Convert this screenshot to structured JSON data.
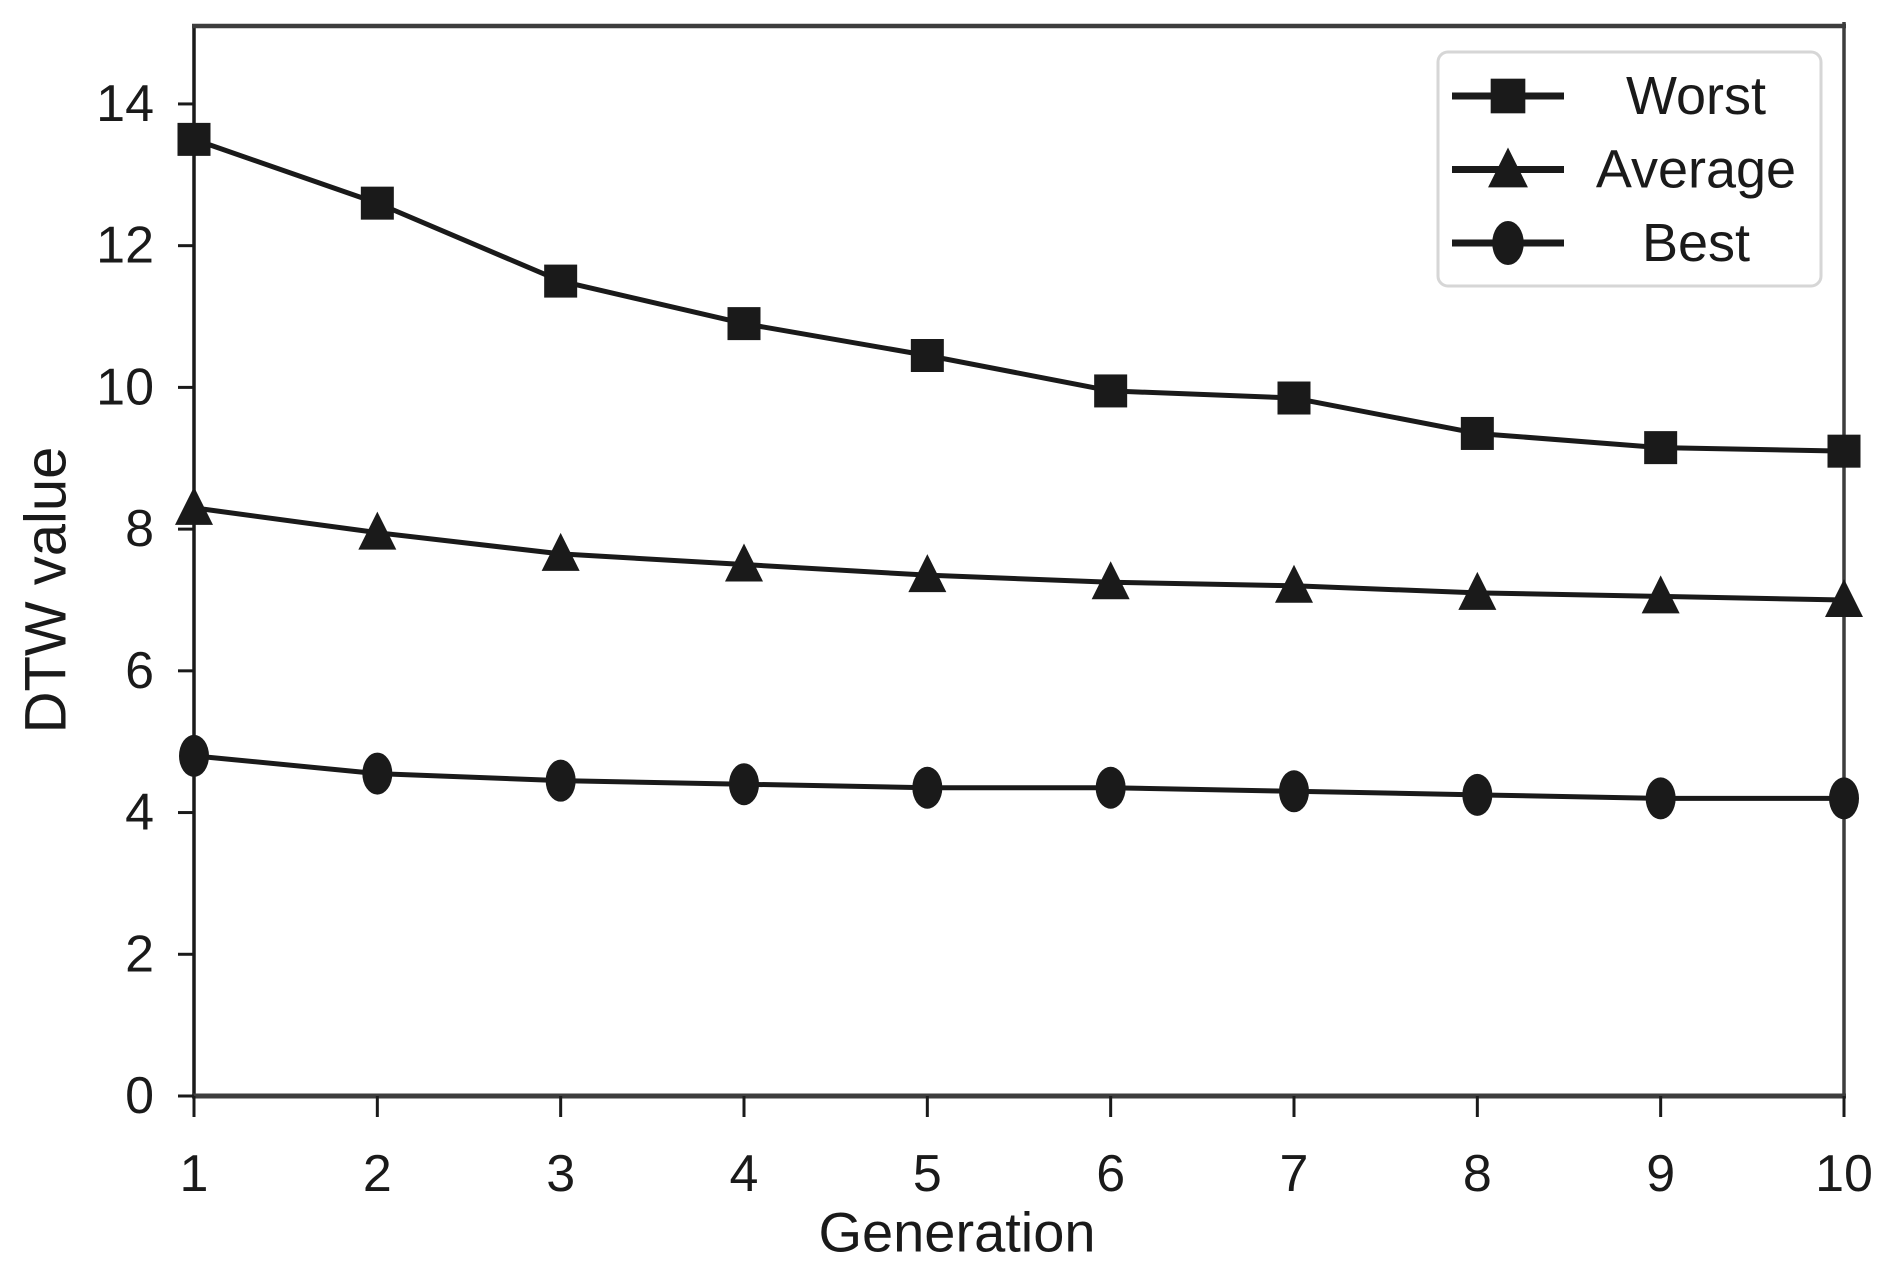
{
  "figure": {
    "background": "#ffffff",
    "axis_color": "#1a1a1a",
    "spine_color": "#3d3d3d",
    "legend_border_color": "#d6d6d6"
  },
  "chart_data": {
    "type": "line",
    "title": "",
    "xlabel": "Generation",
    "ylabel": "DTW value",
    "x": [
      1,
      2,
      3,
      4,
      5,
      6,
      7,
      8,
      9,
      10
    ],
    "xlim": [
      1,
      10
    ],
    "ylim": [
      0,
      15.1
    ],
    "yticks": [
      0,
      2,
      4,
      6,
      8,
      10,
      12,
      14
    ],
    "grid": false,
    "line_color": "#1a1a1a",
    "legend_position": "top-right",
    "series": [
      {
        "name": "Worst",
        "marker": "square",
        "values": [
          13.5,
          12.6,
          11.5,
          10.9,
          10.45,
          9.95,
          9.85,
          9.35,
          9.15,
          9.1
        ]
      },
      {
        "name": "Average",
        "marker": "triangle",
        "values": [
          8.3,
          7.95,
          7.65,
          7.5,
          7.35,
          7.25,
          7.2,
          7.1,
          7.05,
          7.0
        ]
      },
      {
        "name": "Best",
        "marker": "circle",
        "values": [
          4.8,
          4.55,
          4.45,
          4.4,
          4.35,
          4.35,
          4.3,
          4.25,
          4.2,
          4.2
        ]
      }
    ]
  }
}
